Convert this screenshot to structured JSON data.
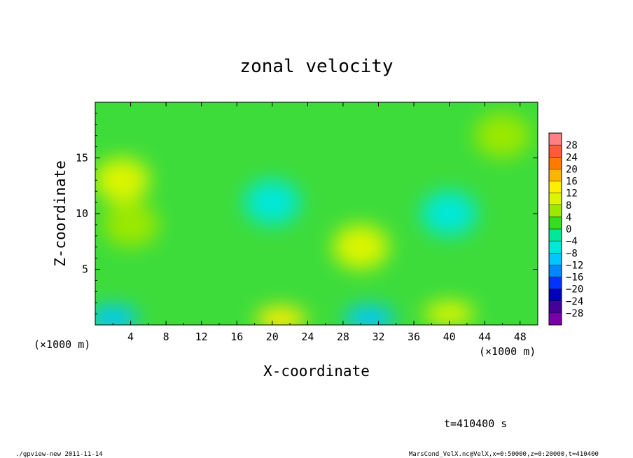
{
  "chart_data": {
    "type": "heatmap",
    "title": "zonal velocity",
    "xlabel": "X-coordinate",
    "ylabel": "Z-coordinate",
    "x_unit": "(×1000 m)",
    "x_unit_right": "(×1000 m)",
    "y_unit": "(×1000 m)",
    "xlim": [
      0,
      50
    ],
    "ylim": [
      0,
      20
    ],
    "xticks": [
      "4",
      "8",
      "12",
      "16",
      "20",
      "24",
      "28",
      "32",
      "36",
      "40",
      "44",
      "48"
    ],
    "yticks": [
      "5",
      "10",
      "15"
    ],
    "colorbar": {
      "levels": [
        "28",
        "24",
        "20",
        "16",
        "12",
        "8",
        "4",
        "0",
        "−4",
        "−8",
        "−12",
        "−16",
        "−20",
        "−24",
        "−28"
      ],
      "colors": [
        "#ff8080",
        "#ff5a3c",
        "#ff7a00",
        "#ffb400",
        "#ffee00",
        "#dcf500",
        "#9be800",
        "#33dd22",
        "#00e899",
        "#00e8d8",
        "#00c8ff",
        "#0088ff",
        "#0033ff",
        "#0000bb",
        "#440099",
        "#7700aa"
      ],
      "range": [
        -30,
        30
      ]
    },
    "features": [
      {
        "x": 3,
        "z": 13,
        "value": 10
      },
      {
        "x": 4,
        "z": 9,
        "value": 6
      },
      {
        "x": 30,
        "z": 7,
        "value": 9
      },
      {
        "x": 21,
        "z": 0.5,
        "value": 14
      },
      {
        "x": 40,
        "z": 1,
        "value": 10
      },
      {
        "x": 31,
        "z": 0.6,
        "value": -10
      },
      {
        "x": 2,
        "z": 0.6,
        "value": -10
      },
      {
        "x": 40,
        "z": 10,
        "value": -6
      },
      {
        "x": 20,
        "z": 11,
        "value": -5
      },
      {
        "x": 46,
        "z": 17,
        "value": 4
      }
    ]
  },
  "time_label": "t=410400 s",
  "footer_left": "./gpview-new  2011-11-14",
  "footer_right": "MarsCond_VelX.nc@VelX,x=0:50000,z=0:20000,t=410400"
}
